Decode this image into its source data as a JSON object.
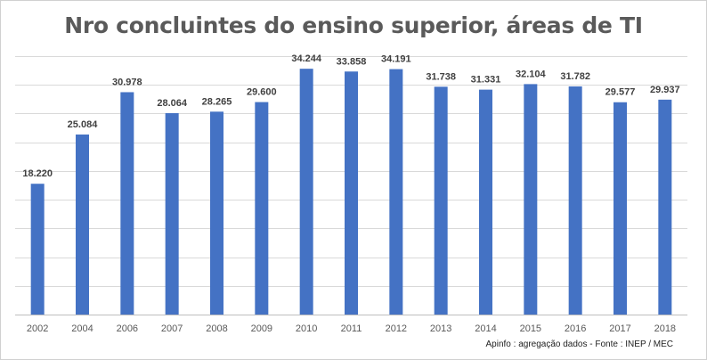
{
  "title": "Nro concluintes do ensino superior, áreas de TI",
  "source_note": "Apinfo : agregação dados - Fonte : INEP / MEC",
  "colors": {
    "bar": "#4472c4",
    "grid": "#d9d9d9",
    "axis": "#bfbfbf",
    "label": "#404040",
    "tick": "#595959"
  },
  "chart_data": {
    "type": "bar",
    "title": "Nro concluintes do ensino superior, áreas de TI",
    "xlabel": "",
    "ylabel": "",
    "grid": true,
    "legend": "none",
    "ylim": [
      0,
      36000
    ],
    "categories": [
      "2002",
      "2004",
      "2006",
      "2007",
      "2008",
      "2009",
      "2010",
      "2011",
      "2012",
      "2013",
      "2014",
      "2015",
      "2016",
      "2017",
      "2018"
    ],
    "values": [
      18220,
      25084,
      30978,
      28064,
      28265,
      29600,
      34244,
      33858,
      34191,
      31738,
      31331,
      32104,
      31782,
      29577,
      29937
    ],
    "data_labels": [
      "18.220",
      "25.084",
      "30.978",
      "28.064",
      "28.265",
      "29.600",
      "34.244",
      "33.858",
      "34.191",
      "31.738",
      "31.331",
      "32.104",
      "31.782",
      "29.577",
      "29.937"
    ]
  }
}
